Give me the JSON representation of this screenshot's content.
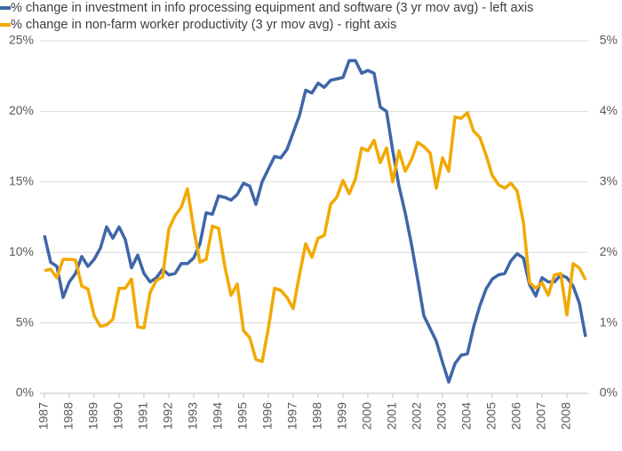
{
  "chart_data": {
    "type": "line",
    "x": [
      1987,
      1987.25,
      1987.5,
      1987.75,
      1988,
      1988.25,
      1988.5,
      1988.75,
      1989,
      1989.25,
      1989.5,
      1989.75,
      1990,
      1990.25,
      1990.5,
      1990.75,
      1991,
      1991.25,
      1991.5,
      1991.75,
      1992,
      1992.25,
      1992.5,
      1992.75,
      1993,
      1993.25,
      1993.5,
      1993.75,
      1994,
      1994.25,
      1994.5,
      1994.75,
      1995,
      1995.25,
      1995.5,
      1995.75,
      1996,
      1996.25,
      1996.5,
      1996.75,
      1997,
      1997.25,
      1997.5,
      1997.75,
      1998,
      1998.25,
      1998.5,
      1998.75,
      1999,
      1999.25,
      1999.5,
      1999.75,
      2000,
      2000.25,
      2000.5,
      2000.75,
      2001,
      2001.25,
      2001.5,
      2001.75,
      2002,
      2002.25,
      2002.5,
      2002.75,
      2003,
      2003.25,
      2003.5,
      2003.75,
      2004,
      2004.25,
      2004.5,
      2004.75,
      2005,
      2005.25,
      2005.5,
      2005.75,
      2006,
      2006.25,
      2006.5,
      2006.75,
      2007,
      2007.25,
      2007.5,
      2007.75,
      2008,
      2008.25,
      2008.5,
      2008.75
    ],
    "series": [
      {
        "name": "% change in investment in info processing equipment and software (3 yr mov avg) - left axis",
        "color": "#3f66a8",
        "axis": "y",
        "values": [
          11.2,
          9.3,
          9.0,
          6.8,
          7.9,
          8.5,
          9.7,
          9.0,
          9.5,
          10.3,
          11.8,
          11.0,
          11.8,
          10.9,
          8.9,
          9.8,
          8.5,
          7.9,
          8.2,
          8.8,
          8.4,
          8.5,
          9.2,
          9.2,
          9.6,
          10.6,
          12.8,
          12.7,
          14.0,
          13.9,
          13.7,
          14.1,
          14.9,
          14.7,
          13.4,
          15.0,
          15.9,
          16.8,
          16.7,
          17.3,
          18.5,
          19.7,
          21.5,
          21.3,
          22.0,
          21.7,
          22.2,
          22.3,
          22.4,
          23.6,
          23.6,
          22.7,
          22.9,
          22.7,
          20.3,
          20.0,
          17.2,
          14.7,
          12.8,
          10.6,
          8.1,
          5.5,
          4.6,
          3.7,
          2.2,
          0.8,
          2.1,
          2.7,
          2.8,
          4.7,
          6.2,
          7.4,
          8.1,
          8.4,
          8.5,
          9.4,
          9.9,
          9.6,
          7.7,
          6.9,
          8.2,
          7.9,
          7.9,
          8.4,
          8.2,
          7.6,
          6.4,
          4.0
        ]
      },
      {
        "name": "% change in non-farm worker productivity (3 yr mov avg) - right axis",
        "color": "#f2a900",
        "axis": "y2",
        "values": [
          1.74,
          1.76,
          1.64,
          1.9,
          1.9,
          1.89,
          1.52,
          1.48,
          1.1,
          0.95,
          0.97,
          1.05,
          1.49,
          1.49,
          1.62,
          0.94,
          0.93,
          1.43,
          1.6,
          1.65,
          2.33,
          2.52,
          2.64,
          2.9,
          2.33,
          1.86,
          1.9,
          2.37,
          2.34,
          1.8,
          1.39,
          1.55,
          0.89,
          0.79,
          0.48,
          0.45,
          0.92,
          1.49,
          1.46,
          1.36,
          1.2,
          1.68,
          2.12,
          1.93,
          2.2,
          2.24,
          2.68,
          2.78,
          3.02,
          2.83,
          3.04,
          3.48,
          3.44,
          3.59,
          3.27,
          3.48,
          3.0,
          3.44,
          3.15,
          3.31,
          3.56,
          3.5,
          3.41,
          2.91,
          3.34,
          3.15,
          3.92,
          3.9,
          3.98,
          3.72,
          3.63,
          3.38,
          3.09,
          2.96,
          2.91,
          2.98,
          2.87,
          2.43,
          1.57,
          1.49,
          1.57,
          1.39,
          1.68,
          1.7,
          1.11,
          1.84,
          1.78,
          1.61
        ]
      }
    ],
    "xlim": [
      1987,
      2008.75
    ],
    "xticks": [
      1987,
      1988,
      1989,
      1990,
      1991,
      1992,
      1993,
      1994,
      1995,
      1996,
      1997,
      1998,
      1999,
      2000,
      2001,
      2002,
      2003,
      2004,
      2005,
      2006,
      2007,
      2008
    ],
    "ylim": [
      0,
      25
    ],
    "yticks": [
      {
        "value": 0,
        "label": "0%"
      },
      {
        "value": 5,
        "label": "5%"
      },
      {
        "value": 10,
        "label": "10%"
      },
      {
        "value": 15,
        "label": "15%"
      },
      {
        "value": 20,
        "label": "20%"
      },
      {
        "value": 25,
        "label": "25%"
      }
    ],
    "y2lim": [
      0,
      5
    ],
    "y2ticks": [
      {
        "value": 0,
        "label": "0%"
      },
      {
        "value": 1,
        "label": "1%"
      },
      {
        "value": 2,
        "label": "2%"
      },
      {
        "value": 3,
        "label": "3%"
      },
      {
        "value": 4,
        "label": "4%"
      },
      {
        "value": 5,
        "label": "5%"
      }
    ],
    "grid": true,
    "legend": "top-left"
  }
}
